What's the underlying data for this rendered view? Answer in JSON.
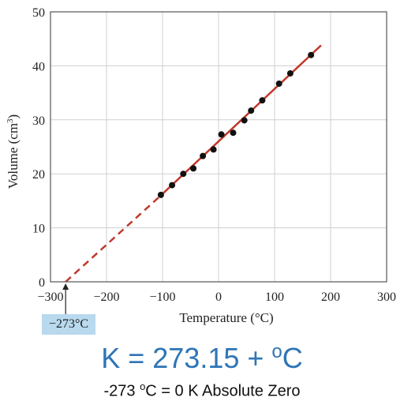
{
  "chart_data": {
    "type": "scatter",
    "xlabel": "Temperature (°C)",
    "ylabel": "Volume (cm",
    "ylabel_sup": "3",
    "ylabel_end": ")",
    "xlim": [
      -300,
      300
    ],
    "ylim": [
      0,
      50
    ],
    "x_ticks": [
      -300,
      -200,
      -100,
      0,
      100,
      200,
      300
    ],
    "x_tick_labels": [
      "−300",
      "−200",
      "−100",
      "0",
      "100",
      "200",
      "300"
    ],
    "y_ticks": [
      0,
      10,
      20,
      30,
      40,
      50
    ],
    "y_tick_labels": [
      "0",
      "10",
      "20",
      "30",
      "40",
      "50"
    ],
    "grid": true,
    "points": [
      {
        "x": -103,
        "y": 16.1
      },
      {
        "x": -83,
        "y": 17.9
      },
      {
        "x": -63,
        "y": 20.0
      },
      {
        "x": -45,
        "y": 21.0
      },
      {
        "x": -28,
        "y": 23.3
      },
      {
        "x": -9,
        "y": 24.5
      },
      {
        "x": 5,
        "y": 27.3
      },
      {
        "x": 26,
        "y": 27.6
      },
      {
        "x": 46,
        "y": 29.9
      },
      {
        "x": 58,
        "y": 31.7
      },
      {
        "x": 78,
        "y": 33.6
      },
      {
        "x": 108,
        "y": 36.7
      },
      {
        "x": 128,
        "y": 38.6
      },
      {
        "x": 165,
        "y": 42.0
      }
    ],
    "fit_solid": {
      "x": [
        -103,
        183
      ],
      "y": [
        16.0,
        43.8
      ]
    },
    "fit_dashed": {
      "x": [
        -273,
        -103
      ],
      "y": [
        0.0,
        16.0
      ]
    },
    "line_color": "#c0392b",
    "point_color": "#111111",
    "annotation": "−273°C"
  },
  "formula": {
    "lhs": "K = 273.15 + ",
    "sup": "o",
    "rhs": "C"
  },
  "note": {
    "pre": "-273 ",
    "sup": "o",
    "post": "C = 0 K Absolute Zero"
  },
  "colors": {
    "accent": "#2e75b6",
    "annotation_bg": "#b8d9ee"
  }
}
